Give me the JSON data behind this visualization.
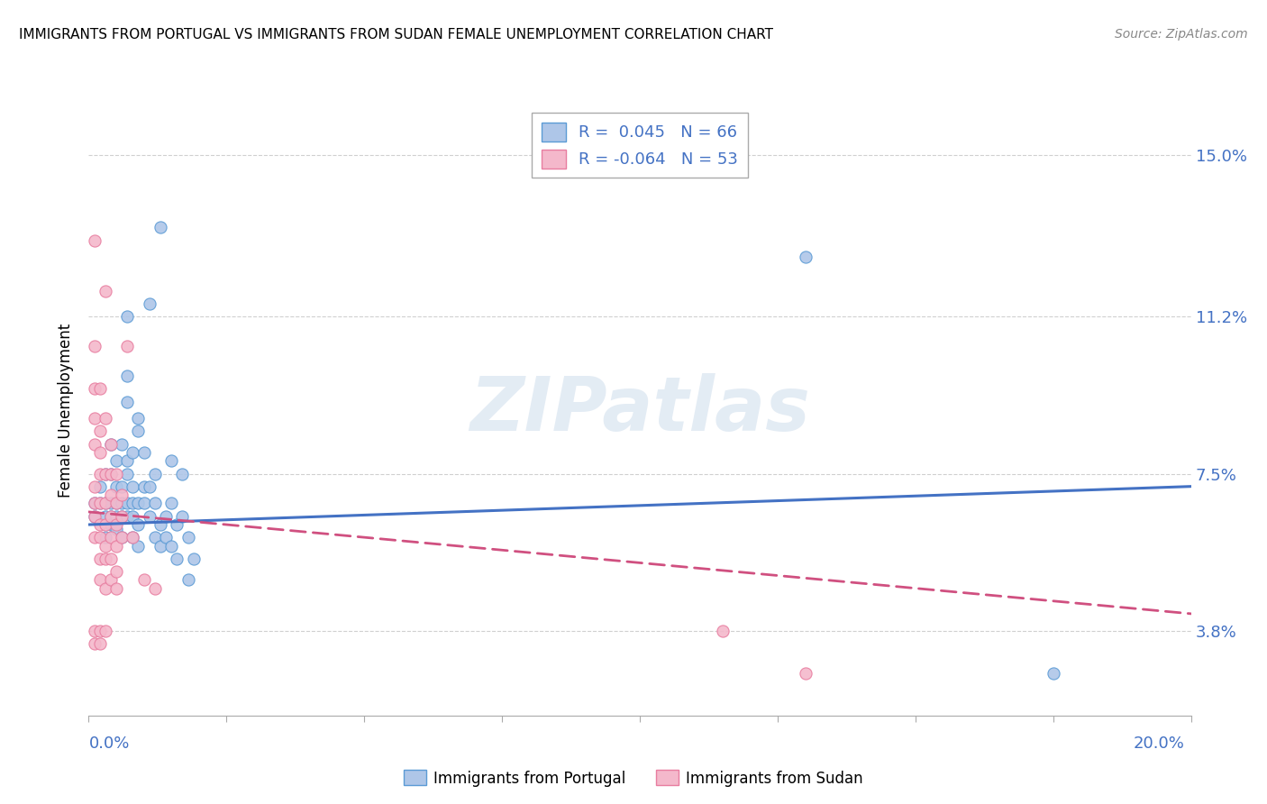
{
  "title": "IMMIGRANTS FROM PORTUGAL VS IMMIGRANTS FROM SUDAN FEMALE UNEMPLOYMENT CORRELATION CHART",
  "source": "Source: ZipAtlas.com",
  "ylabel": "Female Unemployment",
  "yticks": [
    0.038,
    0.075,
    0.112,
    0.15
  ],
  "ytick_labels": [
    "3.8%",
    "7.5%",
    "11.2%",
    "15.0%"
  ],
  "xlim": [
    0.0,
    0.2
  ],
  "ylim": [
    0.018,
    0.162
  ],
  "portugal_R": 0.045,
  "portugal_N": 66,
  "sudan_R": -0.064,
  "sudan_N": 53,
  "portugal_color": "#aec6e8",
  "portugal_edge_color": "#5b9bd5",
  "sudan_color": "#f4b8cb",
  "sudan_edge_color": "#e87da0",
  "portugal_line_color": "#4472c4",
  "sudan_line_color": "#d05080",
  "watermark": "ZIPatlas",
  "portugal_line": [
    [
      0.0,
      0.063
    ],
    [
      0.2,
      0.072
    ]
  ],
  "sudan_line": [
    [
      0.0,
      0.066
    ],
    [
      0.2,
      0.042
    ]
  ],
  "portugal_scatter": [
    [
      0.001,
      0.068
    ],
    [
      0.001,
      0.065
    ],
    [
      0.002,
      0.072
    ],
    [
      0.002,
      0.068
    ],
    [
      0.003,
      0.075
    ],
    [
      0.003,
      0.068
    ],
    [
      0.003,
      0.065
    ],
    [
      0.003,
      0.06
    ],
    [
      0.004,
      0.082
    ],
    [
      0.004,
      0.075
    ],
    [
      0.004,
      0.068
    ],
    [
      0.004,
      0.065
    ],
    [
      0.004,
      0.063
    ],
    [
      0.005,
      0.078
    ],
    [
      0.005,
      0.072
    ],
    [
      0.005,
      0.068
    ],
    [
      0.005,
      0.065
    ],
    [
      0.005,
      0.062
    ],
    [
      0.006,
      0.082
    ],
    [
      0.006,
      0.072
    ],
    [
      0.006,
      0.068
    ],
    [
      0.006,
      0.065
    ],
    [
      0.006,
      0.06
    ],
    [
      0.007,
      0.112
    ],
    [
      0.007,
      0.098
    ],
    [
      0.007,
      0.092
    ],
    [
      0.007,
      0.078
    ],
    [
      0.007,
      0.075
    ],
    [
      0.007,
      0.068
    ],
    [
      0.007,
      0.065
    ],
    [
      0.008,
      0.08
    ],
    [
      0.008,
      0.072
    ],
    [
      0.008,
      0.068
    ],
    [
      0.008,
      0.065
    ],
    [
      0.008,
      0.06
    ],
    [
      0.009,
      0.088
    ],
    [
      0.009,
      0.085
    ],
    [
      0.009,
      0.068
    ],
    [
      0.009,
      0.063
    ],
    [
      0.009,
      0.058
    ],
    [
      0.01,
      0.08
    ],
    [
      0.01,
      0.072
    ],
    [
      0.01,
      0.068
    ],
    [
      0.011,
      0.115
    ],
    [
      0.011,
      0.072
    ],
    [
      0.011,
      0.065
    ],
    [
      0.012,
      0.075
    ],
    [
      0.012,
      0.068
    ],
    [
      0.012,
      0.06
    ],
    [
      0.013,
      0.133
    ],
    [
      0.013,
      0.063
    ],
    [
      0.013,
      0.058
    ],
    [
      0.014,
      0.065
    ],
    [
      0.014,
      0.06
    ],
    [
      0.015,
      0.078
    ],
    [
      0.015,
      0.068
    ],
    [
      0.015,
      0.058
    ],
    [
      0.016,
      0.063
    ],
    [
      0.016,
      0.055
    ],
    [
      0.017,
      0.075
    ],
    [
      0.017,
      0.065
    ],
    [
      0.018,
      0.06
    ],
    [
      0.018,
      0.05
    ],
    [
      0.019,
      0.055
    ],
    [
      0.13,
      0.126
    ],
    [
      0.175,
      0.028
    ]
  ],
  "sudan_scatter": [
    [
      0.001,
      0.13
    ],
    [
      0.001,
      0.105
    ],
    [
      0.001,
      0.095
    ],
    [
      0.001,
      0.088
    ],
    [
      0.001,
      0.082
    ],
    [
      0.001,
      0.072
    ],
    [
      0.001,
      0.068
    ],
    [
      0.001,
      0.065
    ],
    [
      0.001,
      0.06
    ],
    [
      0.001,
      0.038
    ],
    [
      0.001,
      0.035
    ],
    [
      0.002,
      0.095
    ],
    [
      0.002,
      0.085
    ],
    [
      0.002,
      0.08
    ],
    [
      0.002,
      0.075
    ],
    [
      0.002,
      0.068
    ],
    [
      0.002,
      0.063
    ],
    [
      0.002,
      0.06
    ],
    [
      0.002,
      0.055
    ],
    [
      0.002,
      0.05
    ],
    [
      0.002,
      0.038
    ],
    [
      0.002,
      0.035
    ],
    [
      0.003,
      0.118
    ],
    [
      0.003,
      0.088
    ],
    [
      0.003,
      0.075
    ],
    [
      0.003,
      0.068
    ],
    [
      0.003,
      0.063
    ],
    [
      0.003,
      0.058
    ],
    [
      0.003,
      0.055
    ],
    [
      0.003,
      0.048
    ],
    [
      0.003,
      0.038
    ],
    [
      0.004,
      0.082
    ],
    [
      0.004,
      0.075
    ],
    [
      0.004,
      0.07
    ],
    [
      0.004,
      0.065
    ],
    [
      0.004,
      0.06
    ],
    [
      0.004,
      0.055
    ],
    [
      0.004,
      0.05
    ],
    [
      0.005,
      0.075
    ],
    [
      0.005,
      0.068
    ],
    [
      0.005,
      0.063
    ],
    [
      0.005,
      0.058
    ],
    [
      0.005,
      0.052
    ],
    [
      0.005,
      0.048
    ],
    [
      0.006,
      0.07
    ],
    [
      0.006,
      0.065
    ],
    [
      0.006,
      0.06
    ],
    [
      0.007,
      0.105
    ],
    [
      0.008,
      0.06
    ],
    [
      0.01,
      0.05
    ],
    [
      0.012,
      0.048
    ],
    [
      0.115,
      0.038
    ],
    [
      0.13,
      0.028
    ]
  ]
}
